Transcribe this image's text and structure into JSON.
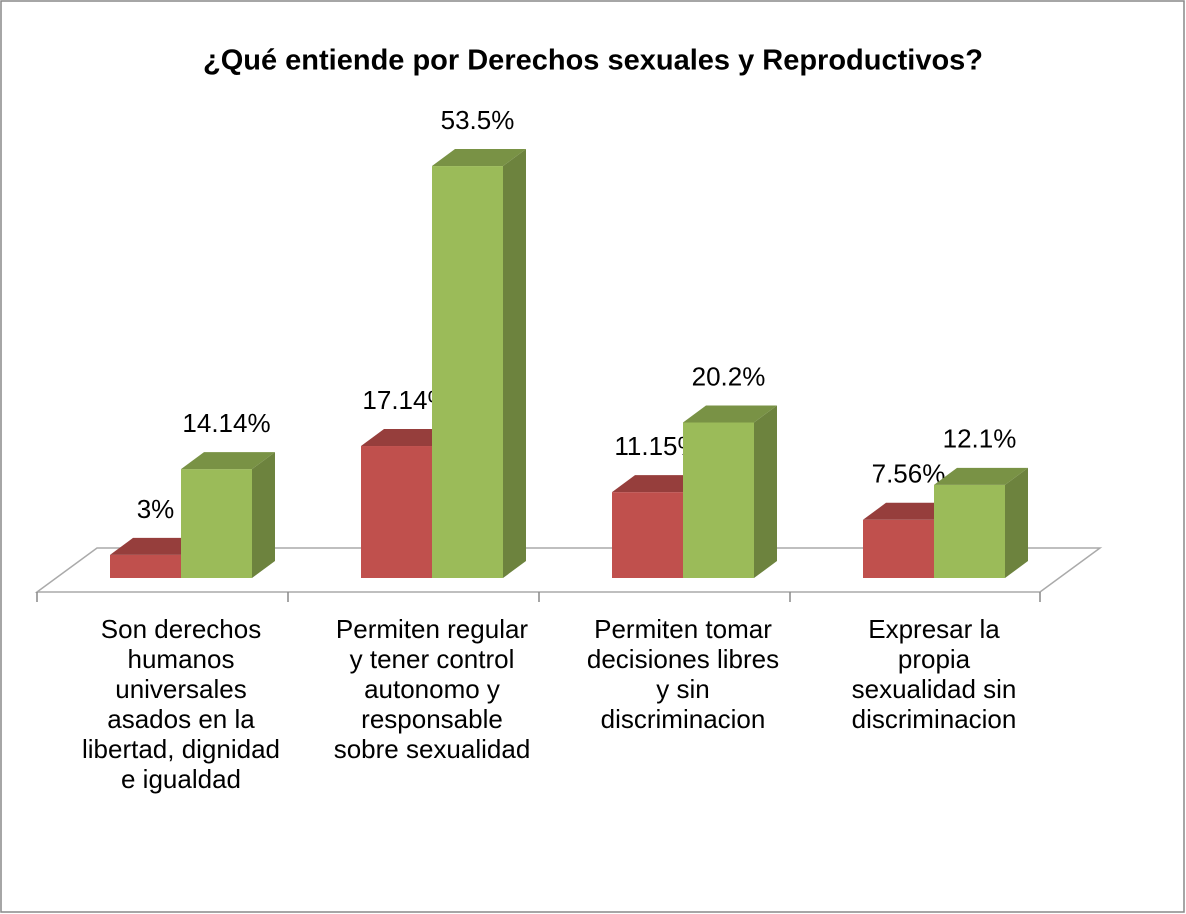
{
  "chart_data": {
    "type": "bar3d",
    "title": "¿Qué entiende por Derechos sexuales y Reproductivos?",
    "categories": [
      "Son derechos humanos universales asados en la libertad, dignidad e igualdad",
      "Permiten regular y tener control autonomo y responsable sobre sexualidad",
      "Permiten tomar decisiones libres y sin discriminacion",
      "Expresar la propia sexualidad sin discriminacion"
    ],
    "series": [
      {
        "color": "#c0504d",
        "values": [
          3,
          17.14,
          11.15,
          7.56
        ],
        "value_labels": [
          "3%",
          "17.14%",
          "11.15%",
          "7.56%"
        ]
      },
      {
        "color": "#9bbb59",
        "values": [
          14.14,
          53.5,
          20.2,
          12.1
        ],
        "value_labels": [
          "14.14%",
          "53.5%",
          "20.2%",
          "12.1%"
        ]
      }
    ]
  }
}
